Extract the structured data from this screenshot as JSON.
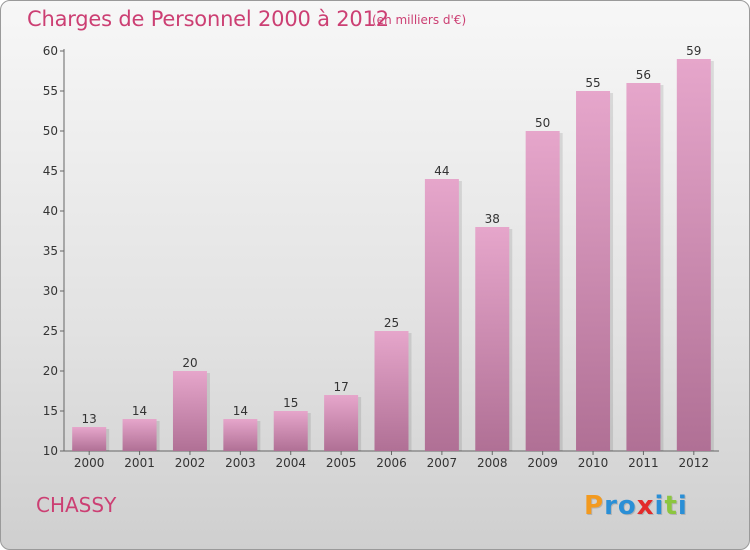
{
  "title": "Charges de Personnel 2000 à 2012",
  "subtitle": "(en milliers d'€)",
  "commune": "CHASSY",
  "logo": {
    "letters": [
      "P",
      "r",
      "o",
      "x",
      "i",
      "t",
      "i"
    ],
    "colors": [
      "#f39a1f",
      "#2a8fd6",
      "#2a8fd6",
      "#e32a2a",
      "#2a8fd6",
      "#8cc63f",
      "#2a8fd6"
    ]
  },
  "colors": {
    "title": "#cc3f73",
    "bar_top": "#e6a6cb",
    "bar_bottom": "#b07095"
  },
  "chart_data": {
    "type": "bar",
    "title": "Charges de Personnel 2000 à 2012",
    "xlabel": "",
    "ylabel": "",
    "categories": [
      "2000",
      "2001",
      "2002",
      "2003",
      "2004",
      "2005",
      "2006",
      "2007",
      "2008",
      "2009",
      "2010",
      "2011",
      "2012"
    ],
    "values": [
      13,
      14,
      20,
      14,
      15,
      17,
      25,
      44,
      38,
      50,
      55,
      56,
      59
    ],
    "ylim": [
      10,
      60
    ],
    "yticks": [
      10,
      15,
      20,
      25,
      30,
      35,
      40,
      45,
      50,
      55,
      60
    ],
    "grid": false
  }
}
